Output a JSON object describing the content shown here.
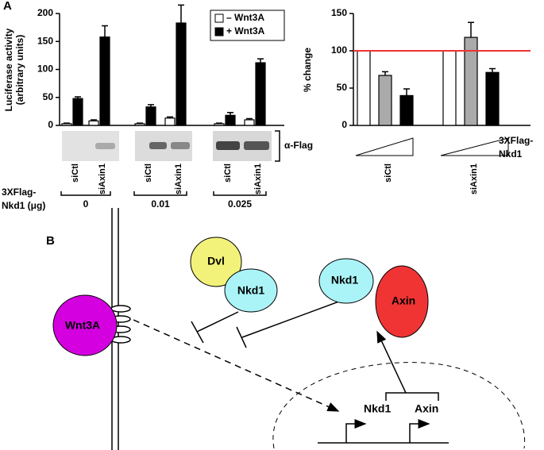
{
  "panels": {
    "a": "A",
    "b": "B"
  },
  "chart_data": [
    {
      "type": "bar",
      "ylabel": "Luciferase activity",
      "ylabel2": "(arbitrary units)",
      "categories": [
        "siCtl",
        "siAxin1",
        "siCtl",
        "siAxin1",
        "siCtl",
        "siAxin1"
      ],
      "series": [
        {
          "name": "– Wnt3A",
          "color": "#ffffff",
          "values": [
            3,
            8,
            3,
            13,
            3,
            10
          ],
          "errors": [
            1,
            2,
            1,
            2,
            1,
            2
          ]
        },
        {
          "name": "+ Wnt3A",
          "color": "#000000",
          "values": [
            48,
            158,
            33,
            183,
            18,
            112
          ],
          "errors": [
            3,
            20,
            4,
            32,
            5,
            7
          ]
        }
      ],
      "ylim": [
        0,
        200
      ],
      "yticks": [
        0,
        50,
        100,
        150,
        200
      ],
      "legend": "upper-right",
      "blot_label": "α-Flag",
      "dose_title": "3XFlag-",
      "dose_title2": "Nkd1 (μg)",
      "doses": [
        "0",
        "0.01",
        "0.025"
      ]
    },
    {
      "type": "bar",
      "ylabel": "% change",
      "categories": [
        "siCtl",
        "siAxin1"
      ],
      "series": [
        {
          "color": "#ffffff",
          "values": [
            100,
            100
          ]
        },
        {
          "color": "#aaaaaa",
          "values": [
            67,
            118
          ],
          "errors": [
            5,
            20
          ]
        },
        {
          "color": "#000000",
          "values": [
            40,
            71
          ],
          "errors": [
            9,
            5
          ]
        }
      ],
      "ylim": [
        0,
        150
      ],
      "yticks": [
        0,
        50,
        100,
        150
      ],
      "reference_line": 100,
      "reference_color": "#ee3333",
      "dose_title": "3XFlag-",
      "dose_title2": "Nkd1"
    }
  ],
  "diagram": {
    "nodes": [
      "Dvl",
      "Nkd1",
      "Nkd1",
      "Axin",
      "Wnt3A"
    ],
    "genes": [
      "Nkd1",
      "Axin"
    ]
  }
}
